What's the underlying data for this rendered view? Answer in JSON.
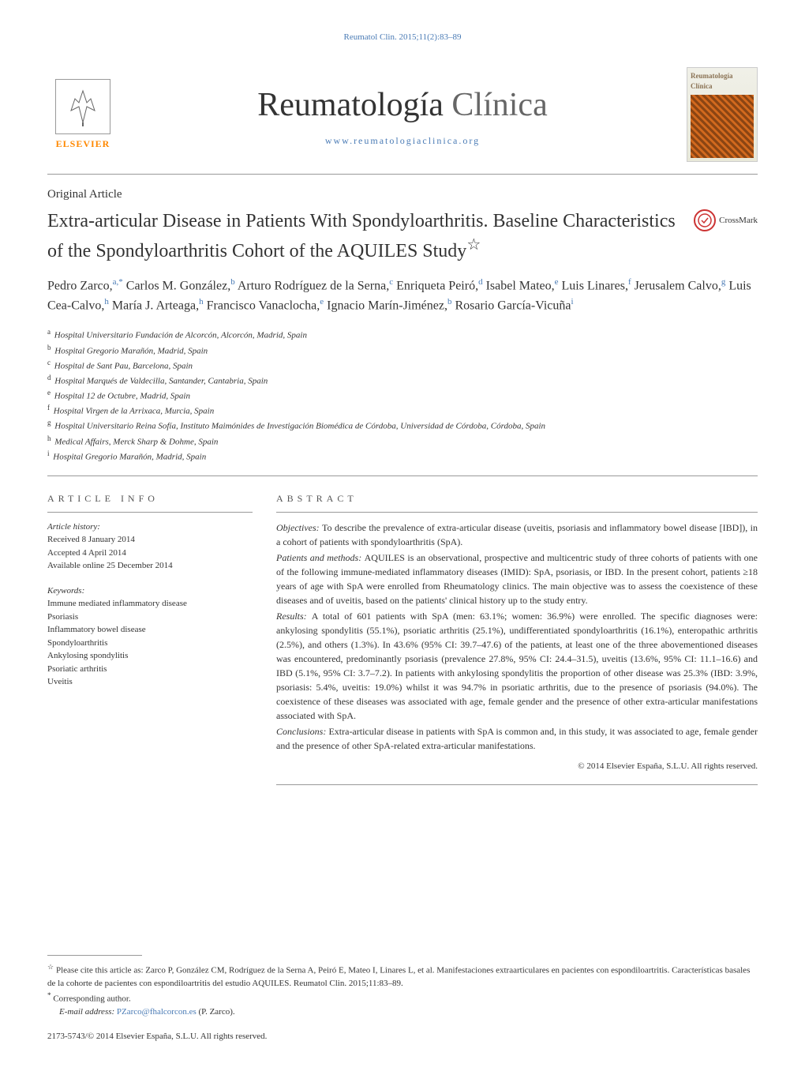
{
  "header": {
    "citation": "Reumatol Clin. 2015;11(2):83–89",
    "publisher": "ELSEVIER",
    "journal_title_main": "Reumatología",
    "journal_title_sub": "Clínica",
    "journal_url": "www.reumatologiaclinica.org",
    "cover_title": "Reumatología Clínica"
  },
  "article": {
    "type": "Original Article",
    "title": "Extra-articular Disease in Patients With Spondyloarthritis. Baseline Characteristics of the Spondyloarthritis Cohort of the AQUILES Study",
    "title_mark": "☆",
    "crossmark": "CrossMark"
  },
  "authors": [
    {
      "name": "Pedro Zarco,",
      "sup": "a,*"
    },
    {
      "name": "Carlos M. González,",
      "sup": "b"
    },
    {
      "name": "Arturo Rodríguez de la Serna,",
      "sup": "c"
    },
    {
      "name": "Enriqueta Peiró,",
      "sup": "d"
    },
    {
      "name": "Isabel Mateo,",
      "sup": "e"
    },
    {
      "name": "Luis Linares,",
      "sup": "f"
    },
    {
      "name": "Jerusalem Calvo,",
      "sup": "g"
    },
    {
      "name": "Luis Cea-Calvo,",
      "sup": "h"
    },
    {
      "name": "María J. Arteaga,",
      "sup": "h"
    },
    {
      "name": "Francisco Vanaclocha,",
      "sup": "e"
    },
    {
      "name": "Ignacio Marín-Jiménez,",
      "sup": "b"
    },
    {
      "name": "Rosario García-Vicuña",
      "sup": "i"
    }
  ],
  "affiliations": [
    {
      "label": "a",
      "text": "Hospital Universitario Fundación de Alcorcón, Alcorcón, Madrid, Spain"
    },
    {
      "label": "b",
      "text": "Hospital Gregorio Marañón, Madrid, Spain"
    },
    {
      "label": "c",
      "text": "Hospital de Sant Pau, Barcelona, Spain"
    },
    {
      "label": "d",
      "text": "Hospital Marqués de Valdecilla, Santander, Cantabria, Spain"
    },
    {
      "label": "e",
      "text": "Hospital 12 de Octubre, Madrid, Spain"
    },
    {
      "label": "f",
      "text": "Hospital Virgen de la Arrixaca, Murcia, Spain"
    },
    {
      "label": "g",
      "text": "Hospital Universitario Reina Sofía, Instituto Maimónides de Investigación Biomédica de Córdoba, Universidad de Córdoba, Córdoba, Spain"
    },
    {
      "label": "h",
      "text": "Medical Affairs, Merck Sharp & Dohme, Spain"
    },
    {
      "label": "i",
      "text": "Hospital Gregorio Marañón, Madrid, Spain"
    }
  ],
  "article_info": {
    "header": "ARTICLE INFO",
    "history_label": "Article history:",
    "history": [
      "Received 8 January 2014",
      "Accepted 4 April 2014",
      "Available online 25 December 2014"
    ],
    "keywords_label": "Keywords:",
    "keywords": [
      "Immune mediated inflammatory disease",
      "Psoriasis",
      "Inflammatory bowel disease",
      "Spondyloarthritis",
      "Ankylosing spondylitis",
      "Psoriatic arthritis",
      "Uveitis"
    ]
  },
  "abstract": {
    "header": "ABSTRACT",
    "sections": [
      {
        "label": "Objectives:",
        "text": "To describe the prevalence of extra-articular disease (uveitis, psoriasis and inflammatory bowel disease [IBD]), in a cohort of patients with spondyloarthritis (SpA)."
      },
      {
        "label": "Patients and methods:",
        "text": "AQUILES is an observational, prospective and multicentric study of three cohorts of patients with one of the following immune-mediated inflammatory diseases (IMID): SpA, psoriasis, or IBD. In the present cohort, patients ≥18 years of age with SpA were enrolled from Rheumatology clinics. The main objective was to assess the coexistence of these diseases and of uveitis, based on the patients' clinical history up to the study entry."
      },
      {
        "label": "Results:",
        "text": "A total of 601 patients with SpA (men: 63.1%; women: 36.9%) were enrolled. The specific diagnoses were: ankylosing spondylitis (55.1%), psoriatic arthritis (25.1%), undifferentiated spondyloarthritis (16.1%), enteropathic arthritis (2.5%), and others (1.3%). In 43.6% (95% CI: 39.7–47.6) of the patients, at least one of the three abovementioned diseases was encountered, predominantly psoriasis (prevalence 27.8%, 95% CI: 24.4–31.5), uveitis (13.6%, 95% CI: 11.1–16.6) and IBD (5.1%, 95% CI: 3.7–7.2). In patients with ankylosing spondylitis the proportion of other disease was 25.3% (IBD: 3.9%, psoriasis: 5.4%, uveitis: 19.0%) whilst it was 94.7% in psoriatic arthritis, due to the presence of psoriasis (94.0%). The coexistence of these diseases was associated with age, female gender and the presence of other extra-articular manifestations associated with SpA."
      },
      {
        "label": "Conclusions:",
        "text": "Extra-articular disease in patients with SpA is common and, in this study, it was associated to age, female gender and the presence of other SpA-related extra-articular manifestations."
      }
    ],
    "copyright": "© 2014 Elsevier España, S.L.U. All rights reserved."
  },
  "footer": {
    "citation_note_mark": "☆",
    "citation_note": "Please cite this article as: Zarco P, González CM, Rodríguez de la Serna A, Peiró E, Mateo I, Linares L, et al. Manifestaciones extraarticulares en pacientes con espondiloartritis. Características basales de la cohorte de pacientes con espondiloartritis del estudio AQUILES. Reumatol Clin. 2015;11:83–89.",
    "corresponding_mark": "*",
    "corresponding": "Corresponding author.",
    "email_label": "E-mail address:",
    "email": "PZarco@fhalcorcon.es",
    "email_name": "(P. Zarco).",
    "issn": "2173-5743/© 2014 Elsevier España, S.L.U. All rights reserved."
  },
  "styling": {
    "link_color": "#4a7bb5",
    "text_color": "#333333",
    "background": "#ffffff",
    "elsevier_orange": "#ff8800",
    "crossmark_red": "#cc3333",
    "divider_color": "#999999"
  }
}
